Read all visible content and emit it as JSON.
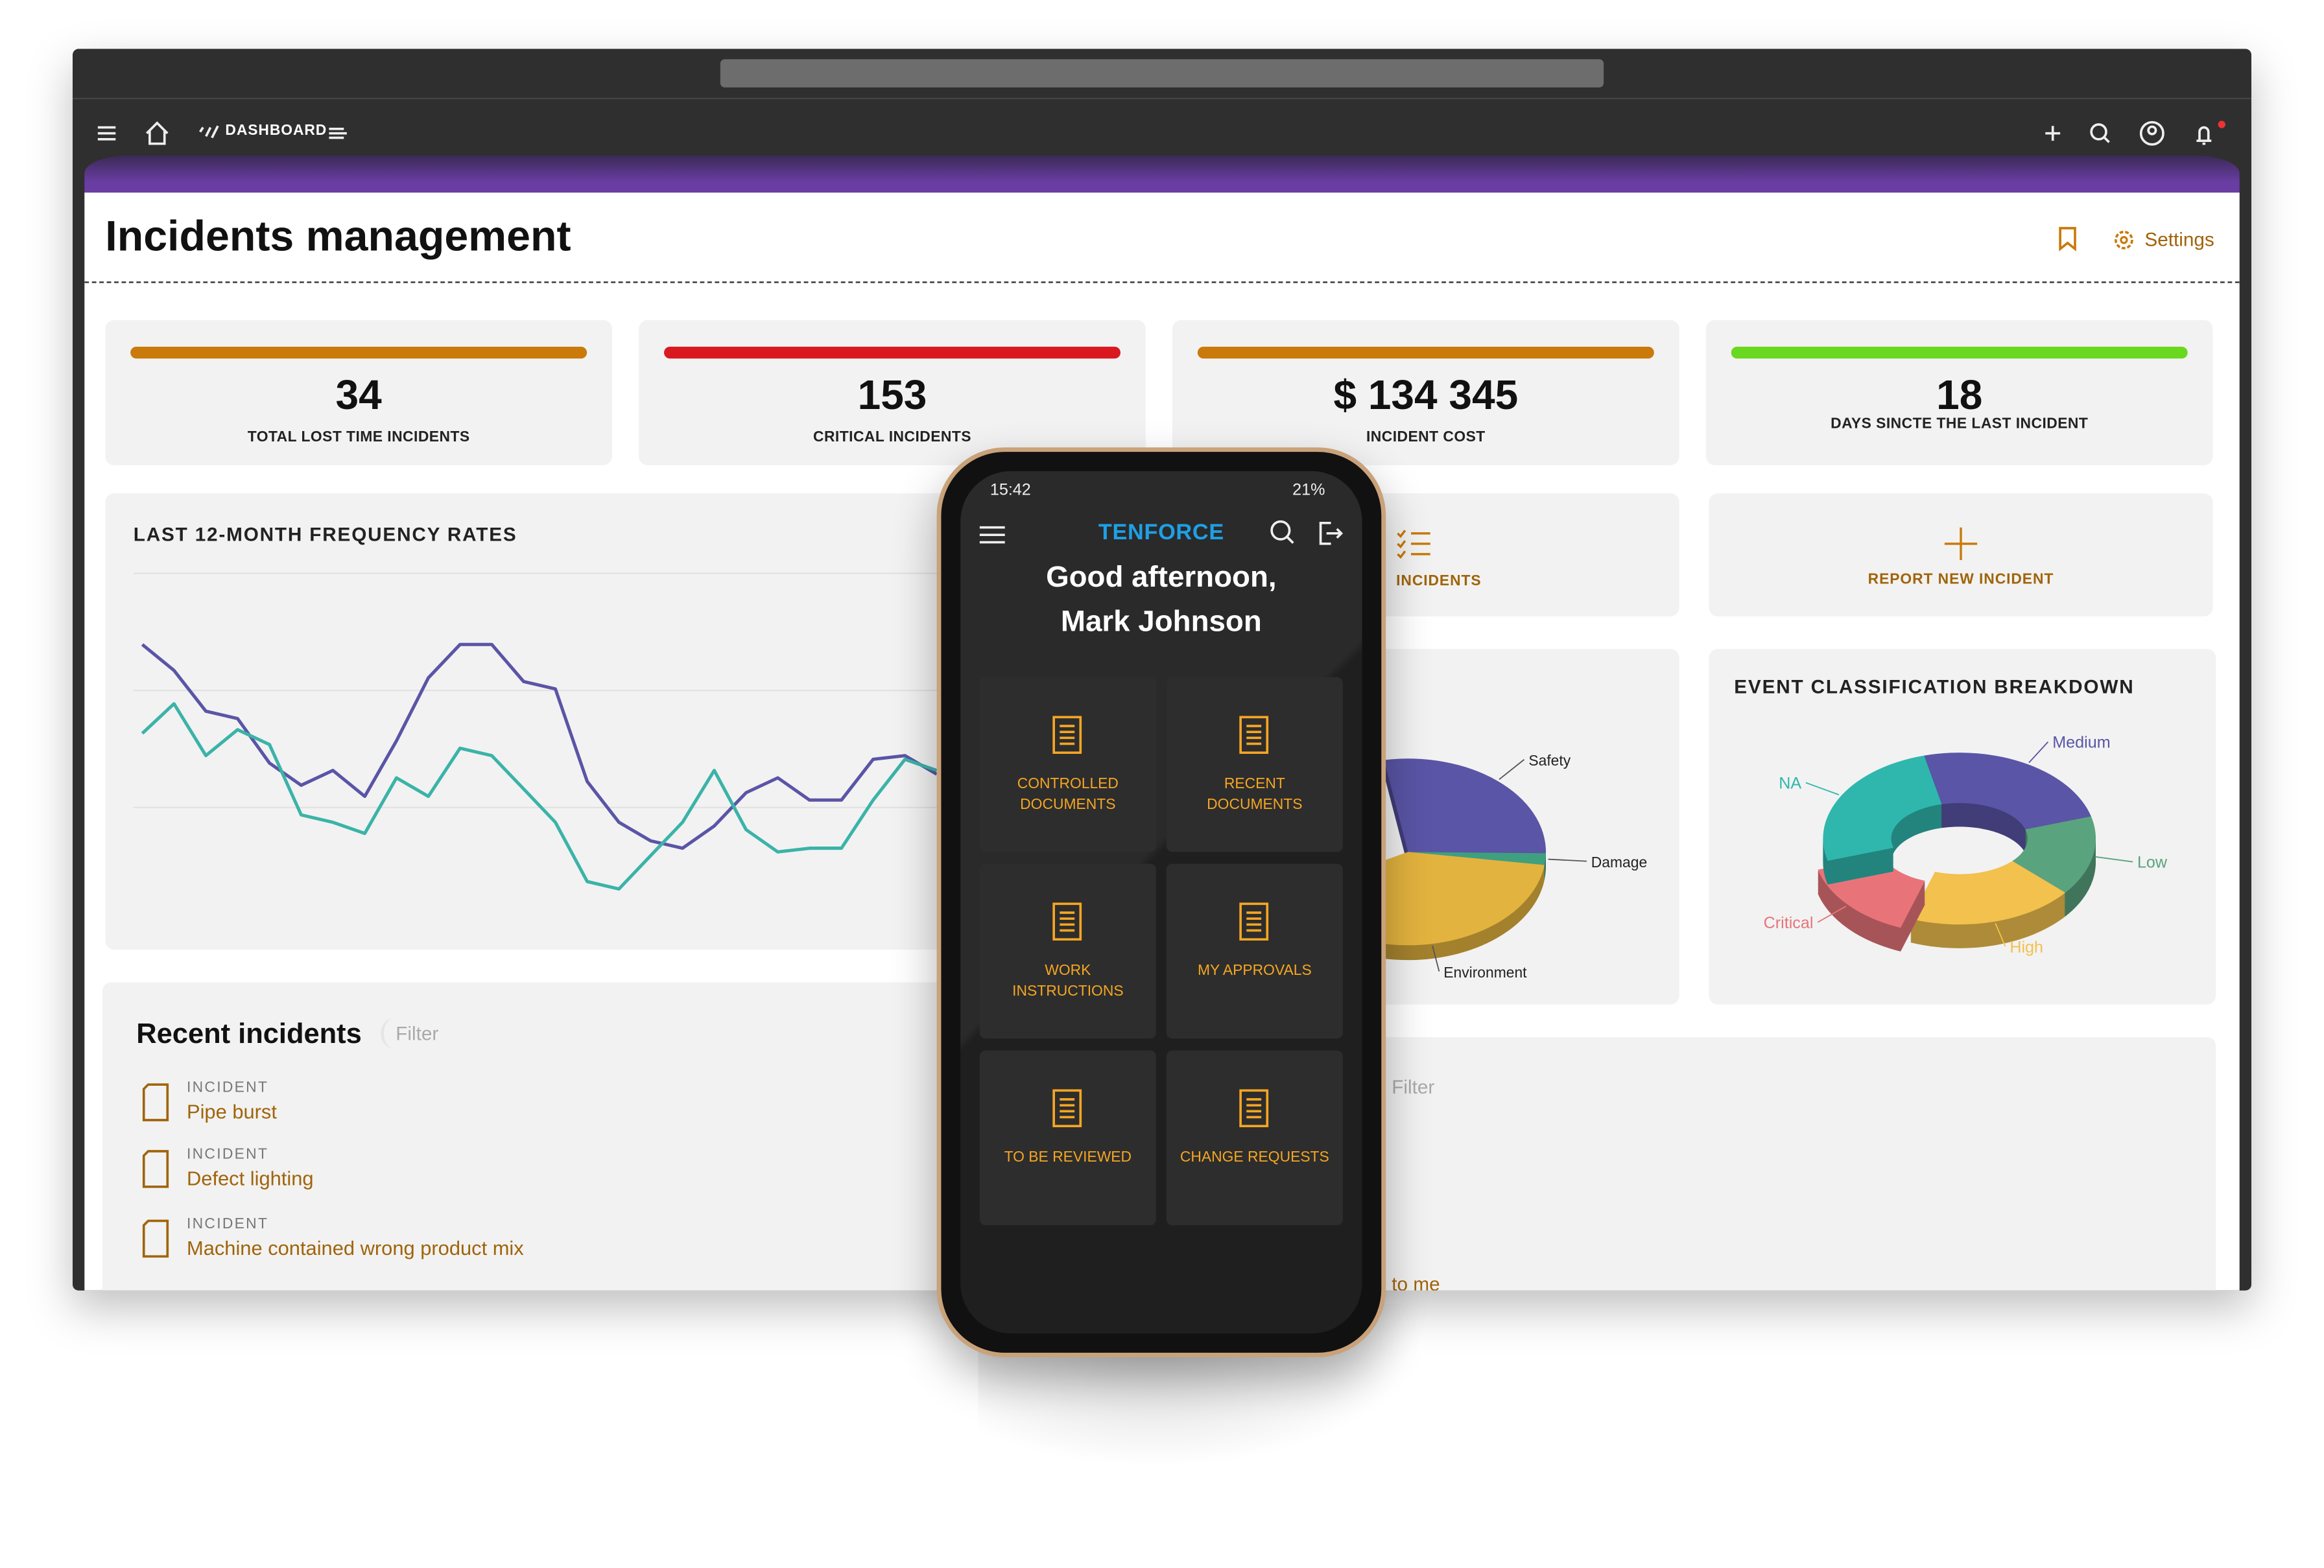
{
  "browser": {
    "nav_label": "DASHBOARD"
  },
  "page": {
    "title": "Incidents management",
    "settings": "Settings"
  },
  "kpis": [
    {
      "value": "34",
      "label": "TOTAL LOST TIME INCIDENTS",
      "color": "#c97a0a"
    },
    {
      "value": "153",
      "label": "CRITICAL INCIDENTS",
      "color": "#d9191f"
    },
    {
      "value": "$ 134 345",
      "label": "INCIDENT COST",
      "color": "#c97a0a"
    },
    {
      "value": "18",
      "label": "DAYS SINCTE THE LAST INCIDENT",
      "color": "#6ad81f"
    }
  ],
  "frequency_chart": {
    "type": "line",
    "title": "LAST 12-MONTH FREQUENCY RATES",
    "ylim": [
      0,
      100
    ],
    "series": [
      {
        "color": "#5a55a6",
        "values": [
          74,
          67,
          56,
          54,
          42,
          36,
          40,
          33,
          48,
          65,
          74,
          74,
          64,
          62,
          37,
          26,
          21,
          19,
          25,
          34,
          38,
          32,
          32,
          43,
          44,
          39
        ]
      },
      {
        "color": "#3bb3a8",
        "values": [
          50,
          58,
          44,
          51,
          47,
          28,
          26,
          23,
          38,
          33,
          46,
          44,
          35,
          26,
          10,
          8,
          17,
          26,
          40,
          24,
          18,
          19,
          19,
          32,
          43,
          40
        ]
      }
    ]
  },
  "actions": {
    "incidents": "INCIDENTS",
    "report": "REPORT NEW INCIDENT"
  },
  "pie_chart": {
    "type": "pie",
    "labels": [
      "Safety",
      "Damage",
      "Environment"
    ],
    "values": [
      28,
      2,
      40
    ],
    "colors": [
      "#5a55a6",
      "#3fa07f",
      "#e3b33f"
    ]
  },
  "donut_chart": {
    "type": "donut",
    "title": "EVENT CLASSIFICATION BREAKDOWN",
    "labels": [
      "Medium",
      "Low",
      "High",
      "Critical",
      "NA"
    ],
    "values": [
      25,
      15,
      20,
      15,
      25
    ],
    "colors": [
      "#5a55a6",
      "#5aa37f",
      "#f2c14e",
      "#e8747a",
      "#2fb7ad"
    ]
  },
  "recent": {
    "title": "Recent incidents",
    "filter": "Filter",
    "items": [
      {
        "kind": "INCIDENT",
        "name": "Pipe burst"
      },
      {
        "kind": "INCIDENT",
        "name": "Defect lighting"
      },
      {
        "kind": "INCIDENT",
        "name": "Machine contained wrong product mix"
      }
    ]
  },
  "second_panel": {
    "filter": "Filter",
    "text": "to me"
  },
  "phone": {
    "time": "15:42",
    "battery": "21%",
    "brand": "TENFORCE",
    "greeting": [
      "Good afternoon,",
      "Mark Johnson"
    ],
    "tiles": [
      "CONTROLLED DOCUMENTS",
      "RECENT DOCUMENTS",
      "WORK INSTRUCTIONS",
      "MY APPROVALS",
      "TO BE REVIEWED",
      "CHANGE REQUESTS"
    ]
  }
}
